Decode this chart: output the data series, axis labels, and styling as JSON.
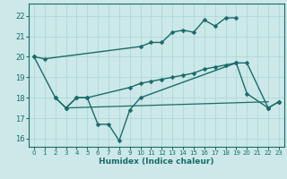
{
  "xlabel": "Humidex (Indice chaleur)",
  "xlim": [
    -0.5,
    23.5
  ],
  "ylim": [
    15.6,
    22.6
  ],
  "yticks": [
    16,
    17,
    18,
    19,
    20,
    21,
    22
  ],
  "xticks": [
    0,
    1,
    2,
    3,
    4,
    5,
    6,
    7,
    8,
    9,
    10,
    11,
    12,
    13,
    14,
    15,
    16,
    17,
    18,
    19,
    20,
    21,
    22,
    23
  ],
  "bg_color": "#cce8e8",
  "grid_color": "#aad4d4",
  "line_color": "#1a6b6b",
  "lines": [
    {
      "x": [
        0,
        1,
        10,
        11,
        12,
        13,
        14,
        15,
        16,
        17,
        18,
        19
      ],
      "y": [
        20.0,
        19.9,
        20.5,
        20.7,
        20.7,
        21.2,
        21.3,
        21.2,
        21.8,
        21.5,
        21.9,
        21.9
      ],
      "marker": "D",
      "markersize": 2.5,
      "linewidth": 1.0
    },
    {
      "x": [
        0,
        2,
        3,
        4,
        5,
        6,
        7,
        8,
        9,
        10,
        19,
        20,
        22,
        23
      ],
      "y": [
        20.0,
        18.0,
        17.5,
        18.0,
        18.0,
        16.7,
        16.7,
        15.9,
        17.4,
        18.0,
        19.7,
        18.2,
        17.5,
        17.8
      ],
      "marker": "D",
      "markersize": 2.5,
      "linewidth": 1.0
    },
    {
      "x": [
        2,
        3,
        4,
        5,
        9,
        10,
        11,
        12,
        13,
        14,
        15,
        16,
        17,
        18,
        19,
        20,
        22,
        23
      ],
      "y": [
        18.0,
        17.5,
        18.0,
        18.0,
        18.5,
        18.7,
        18.8,
        18.9,
        19.0,
        19.1,
        19.2,
        19.4,
        19.5,
        19.6,
        19.7,
        19.7,
        17.5,
        17.8
      ],
      "marker": "D",
      "markersize": 2.5,
      "linewidth": 1.0
    },
    {
      "x": [
        3,
        22
      ],
      "y": [
        17.5,
        17.8
      ],
      "marker": null,
      "markersize": 0,
      "linewidth": 0.9
    }
  ]
}
